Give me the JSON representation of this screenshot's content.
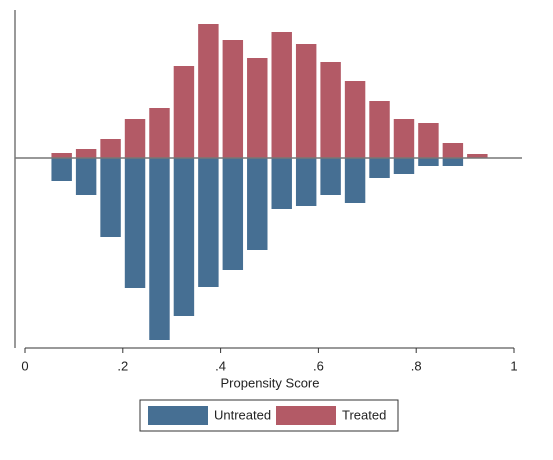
{
  "chart_data": {
    "type": "mirrored_histogram",
    "xlabel": "Propensity Score",
    "bins": [
      0.05,
      0.1,
      0.15,
      0.2,
      0.25,
      0.3,
      0.35,
      0.4,
      0.45,
      0.5,
      0.55,
      0.6,
      0.65,
      0.7,
      0.75,
      0.8,
      0.85,
      0.9,
      0.95
    ],
    "series": [
      {
        "name": "Untreated",
        "color": "#466f93",
        "values": [
          -23,
          -37,
          -79,
          -130,
          -182,
          -158,
          -129,
          -112,
          -92,
          -51,
          -48,
          -37,
          -45,
          -20,
          -16,
          -8,
          -8,
          0
        ]
      },
      {
        "name": "Treated",
        "color": "#b35a66",
        "values": [
          5,
          9,
          19,
          39,
          50,
          92,
          134,
          118,
          100,
          126,
          114,
          96,
          77,
          57,
          39,
          35,
          15,
          4
        ]
      }
    ],
    "xlim": [
      0,
      1
    ],
    "ylim": [
      -190,
      146
    ],
    "xticks": [
      0,
      {
        "value": 0.2,
        "label": ".2"
      },
      {
        "value": 0.4,
        "label": ".4"
      },
      {
        "value": 0.6,
        "label": ".6"
      },
      {
        "value": 0.8,
        "label": ".8"
      },
      1
    ],
    "legend": "bottom"
  }
}
